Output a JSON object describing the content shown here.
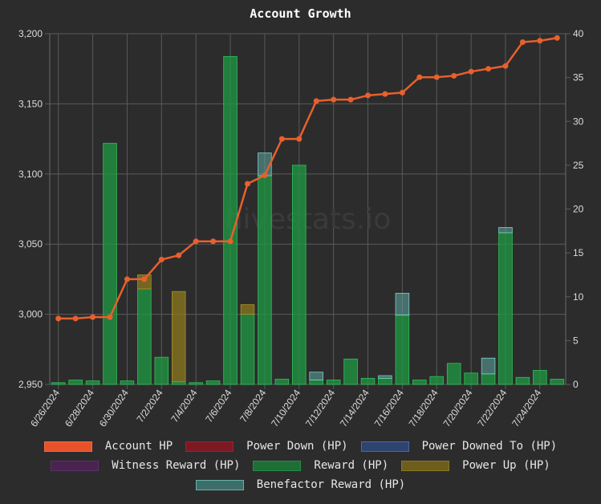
{
  "chart_data": {
    "type": "bar",
    "title": "Account Growth",
    "watermark": "hivestats.io",
    "x": [
      "6/26/2024",
      "6/27/2024",
      "6/28/2024",
      "6/29/2024",
      "6/30/2024",
      "7/1/2024",
      "7/2/2024",
      "7/3/2024",
      "7/4/2024",
      "7/5/2024",
      "7/6/2024",
      "7/7/2024",
      "7/8/2024",
      "7/9/2024",
      "7/10/2024",
      "7/11/2024",
      "7/12/2024",
      "7/13/2024",
      "7/14/2024",
      "7/15/2024",
      "7/16/2024",
      "7/17/2024",
      "7/18/2024",
      "7/19/2024",
      "7/20/2024",
      "7/21/2024",
      "7/22/2024",
      "7/23/2024",
      "7/24/2024",
      "7/25/2024"
    ],
    "xtick_labels": [
      "6/26/2024",
      "6/28/2024",
      "6/30/2024",
      "7/2/2024",
      "7/4/2024",
      "7/6/2024",
      "7/8/2024",
      "7/10/2024",
      "7/12/2024",
      "7/14/2024",
      "7/16/2024",
      "7/18/2024",
      "7/20/2024",
      "7/22/2024",
      "7/24/2024"
    ],
    "y_left": {
      "min": 2950,
      "max": 3200,
      "ticks": [
        "2,950",
        "3,000",
        "3,050",
        "3,100",
        "3,150",
        "3,200"
      ]
    },
    "y_right": {
      "min": 0,
      "max": 40,
      "ticks": [
        "0",
        "5",
        "10",
        "15",
        "20",
        "25",
        "30",
        "35",
        "40"
      ]
    },
    "grid": true,
    "legend_position": "bottom",
    "series": [
      {
        "name": "Account HP",
        "kind": "line",
        "axis": "left",
        "color": "#e8602c",
        "values": [
          2997,
          2997,
          2998,
          2998,
          3025,
          3025,
          3039,
          3042,
          3052,
          3052,
          3052,
          3093,
          3099,
          3125,
          3125,
          3152,
          3153,
          3153,
          3156,
          3157,
          3158,
          3169,
          3169,
          3170,
          3173,
          3175,
          3177,
          3194,
          3195,
          3197
        ]
      },
      {
        "name": "Power Down (HP)",
        "kind": "bar",
        "axis": "right",
        "color": "#a51e2d",
        "values": [
          0,
          0,
          0,
          0,
          0,
          0,
          0,
          0,
          0,
          0,
          0,
          0,
          0,
          0,
          0,
          0,
          0,
          0,
          0,
          0,
          0,
          0,
          0,
          0,
          0,
          0,
          0,
          0,
          0,
          0
        ]
      },
      {
        "name": "Power Downed To (HP)",
        "kind": "bar",
        "axis": "right",
        "color": "#3a5a8c",
        "values": [
          0,
          0,
          0,
          0,
          0,
          0,
          0,
          0,
          0,
          0,
          0,
          0,
          0,
          0,
          0,
          0,
          0,
          0,
          0,
          0,
          0,
          0,
          0,
          0,
          0,
          0,
          0,
          0,
          0,
          0
        ]
      },
      {
        "name": "Witness Reward (HP)",
        "kind": "bar",
        "axis": "right",
        "color": "#6a2a7a",
        "values": [
          0,
          0,
          0,
          0,
          0,
          0,
          0,
          0,
          0,
          0,
          0,
          0,
          0,
          0,
          0,
          0,
          0,
          0,
          0,
          0,
          0,
          0,
          0,
          0,
          0,
          0,
          0,
          0,
          0,
          0
        ]
      },
      {
        "name": "Reward (HP)",
        "kind": "bar",
        "axis": "right",
        "color": "#1f9a42",
        "values": [
          0.2,
          0.5,
          0.4,
          27.5,
          0.4,
          10.9,
          3.1,
          0.3,
          0.2,
          0.4,
          37.4,
          8.0,
          23.8,
          0.6,
          25.0,
          0.5,
          0.5,
          2.9,
          0.7,
          0.7,
          7.9,
          0.5,
          0.9,
          2.4,
          1.3,
          1.2,
          17.3,
          0.8,
          1.6,
          0.6
        ]
      },
      {
        "name": "Power Up (HP)",
        "kind": "bar",
        "axis": "right",
        "color": "#8c7a1e",
        "values": [
          0,
          0,
          0,
          0,
          0,
          1.6,
          0,
          10.3,
          0,
          0,
          0,
          1.1,
          0,
          0,
          0,
          0,
          0,
          0,
          0,
          0,
          0,
          0,
          0,
          0,
          0,
          0,
          0,
          0,
          0,
          0
        ]
      },
      {
        "name": "Benefactor Reward (HP)",
        "kind": "bar",
        "axis": "right",
        "color": "#5fa9a0",
        "values": [
          0,
          0,
          0,
          0,
          0,
          0,
          0,
          0,
          0,
          0,
          0,
          0,
          2.6,
          0,
          0,
          0.9,
          0,
          0,
          0,
          0.3,
          2.5,
          0,
          0,
          0,
          0,
          1.8,
          0.6,
          0,
          0,
          0
        ]
      }
    ]
  },
  "legend": {
    "rows": [
      [
        {
          "label": "Account HP",
          "fill": "#e8522a",
          "border": "#f06a40"
        },
        {
          "label": "Power Down (HP)",
          "fill": "#7c1a24",
          "border": "#9a2230"
        },
        {
          "label": "Power Downed To (HP)",
          "fill": "#2e4470",
          "border": "#4a6aa0"
        }
      ],
      [
        {
          "label": "Witness Reward (HP)",
          "fill": "#4a2450",
          "border": "#5e2e68"
        },
        {
          "label": "Reward (HP)",
          "fill": "#1d6f36",
          "border": "#2a8a48"
        },
        {
          "label": "Power Up (HP)",
          "fill": "#6e5e1c",
          "border": "#8a7624"
        }
      ],
      [
        {
          "label": "Benefactor Reward (HP)",
          "fill": "#3c6e6a",
          "border": "#6ab0a8"
        }
      ]
    ]
  }
}
